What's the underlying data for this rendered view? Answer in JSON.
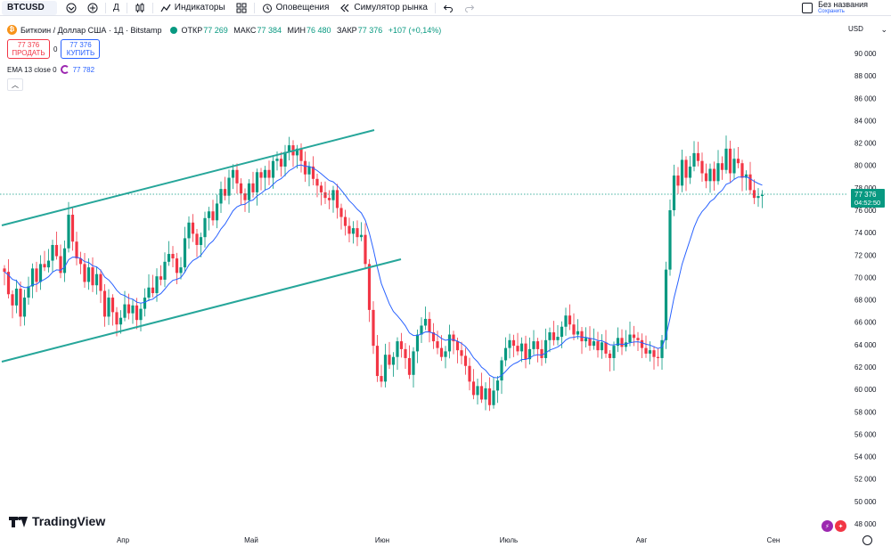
{
  "toolbar": {
    "symbol": "BTCUSD",
    "interval": "Д",
    "indicators_label": "Индикаторы",
    "alerts_label": "Оповещения",
    "replay_label": "Симулятор рынка",
    "layout_name": "Без названия",
    "layout_status": "Сохранить"
  },
  "legend": {
    "title": "Биткоин / Доллар США · 1Д · Bitstamp",
    "open_label": "ОТКР",
    "open": "77 269",
    "high_label": "МАКС",
    "high": "77 384",
    "low_label": "МИН",
    "low": "76 480",
    "close_label": "ЗАКР",
    "close": "77 376",
    "change": "+107 (+0,14%)"
  },
  "trade": {
    "sell_price": "77 376",
    "sell_label": "ПРОДАТЬ",
    "spread": "0",
    "buy_price": "77 376",
    "buy_label": "КУПИТЬ"
  },
  "ema": {
    "label": "EMA 13 close 0",
    "value": "77 782"
  },
  "scale": {
    "currency": "USD",
    "last_price": "77 376",
    "countdown": "04:52:50"
  },
  "brand": {
    "name": "TradingView"
  },
  "colors": {
    "up": "#089981",
    "down": "#f23645",
    "ema": "#2962ff",
    "channel": "#26a69a"
  },
  "chart_data": {
    "type": "candlestick",
    "title": "Биткоин / Доллар США · 1Д · Bitstamp",
    "x_ticks": [
      "Апр",
      "Май",
      "Июн",
      "Июль",
      "Авг",
      "Сен"
    ],
    "y_ticks": [
      "90 000",
      "88 000",
      "86 000",
      "84 000",
      "82 000",
      "80 000",
      "78 000",
      "76 000",
      "74 000",
      "72 000",
      "70 000",
      "68 000",
      "66 000",
      "64 000",
      "62 000",
      "60 000",
      "58 000",
      "56 000",
      "54 000",
      "52 000",
      "50 000",
      "48 000"
    ],
    "ylim": [
      48000,
      90000
    ],
    "grid": false,
    "series": [
      {
        "name": "BTCUSD",
        "close_approx": [
          70500,
          68500,
          67500,
          69000,
          66500,
          68200,
          69200,
          70800,
          69600,
          71200,
          70900,
          71500,
          72900,
          71900,
          70400,
          72600,
          75600,
          73200,
          71700,
          71200,
          69600,
          70900,
          69300,
          70300,
          68800,
          66500,
          68200,
          66900,
          65800,
          66400,
          67600,
          66800,
          67500,
          66200,
          67200,
          68200,
          69100,
          68600,
          70100,
          69800,
          71400,
          72100,
          71700,
          70400,
          70900,
          73500,
          74900,
          73900,
          72900,
          73600,
          75300,
          75900,
          75100,
          76600,
          77900,
          77300,
          78900,
          79600,
          78400,
          77500,
          76900,
          78400,
          77600,
          79400,
          78900,
          79600,
          78900,
          80400,
          80600,
          79900,
          81200,
          81800,
          80900,
          81500,
          80400,
          79200,
          79900,
          78800,
          78200,
          77600,
          77100,
          76900,
          77800,
          76200,
          75400,
          74600,
          73900,
          74400,
          73600,
          73800,
          71200,
          67100,
          63900,
          61200,
          60700,
          63100,
          62200,
          62900,
          64300,
          63600,
          62800,
          61300,
          63400,
          64900,
          65700,
          66300,
          65100,
          64300,
          63700,
          62900,
          63400,
          64900,
          64300,
          63500,
          63000,
          62100,
          60700,
          59500,
          60300,
          59100,
          60100,
          58600,
          59900,
          60800,
          62600,
          63700,
          64400,
          63900,
          63400,
          64100,
          62700,
          63600,
          64300,
          63600,
          62800,
          64400,
          65100,
          64400,
          64700,
          65600,
          66600,
          65800,
          64900,
          65200,
          64300,
          64600,
          63900,
          64300,
          63500,
          64200,
          63200,
          62800,
          63900,
          64600,
          63800,
          64200,
          64900,
          64600,
          64400,
          63700,
          63200,
          63500,
          62900,
          62800,
          64400,
          70700,
          76000,
          79100,
          78200,
          80500,
          78900,
          79900,
          81100,
          80400,
          79300,
          78600,
          79700,
          78600,
          80200,
          79600,
          81500,
          79300,
          80600,
          80200,
          78900,
          79200,
          77800,
          77100,
          77269,
          77376
        ]
      },
      {
        "name": "EMA 13 close 0",
        "last": 77782
      }
    ],
    "annotations": [
      "ascending channel trendlines (upper and lower)"
    ]
  }
}
